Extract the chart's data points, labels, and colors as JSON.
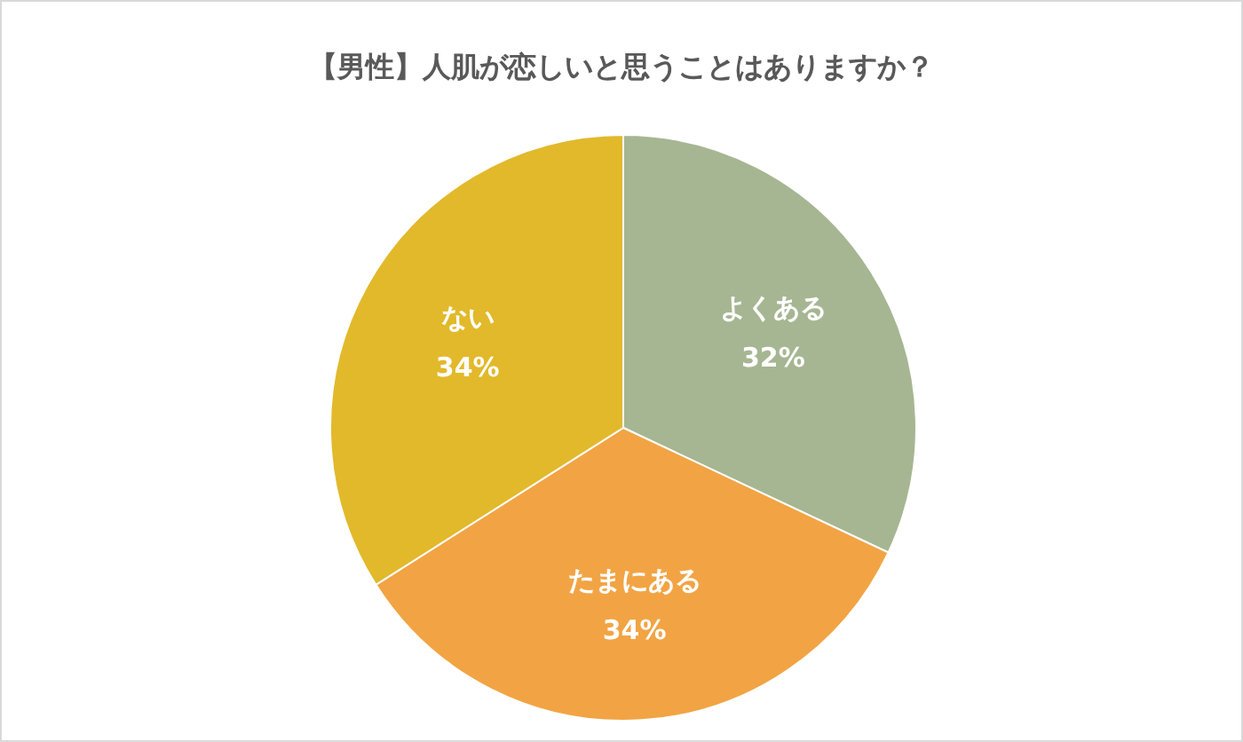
{
  "chart_data": {
    "type": "pie",
    "title": "【男性】人肌が恋しいと思うことはありますか？",
    "categories": [
      "よくある",
      "たまにある",
      "ない"
    ],
    "values": [
      32,
      34,
      34
    ],
    "colors": [
      "#a6b692",
      "#f2a444",
      "#e2b92b"
    ],
    "value_labels": [
      "32%",
      "34%",
      "34%"
    ],
    "legend": false
  }
}
